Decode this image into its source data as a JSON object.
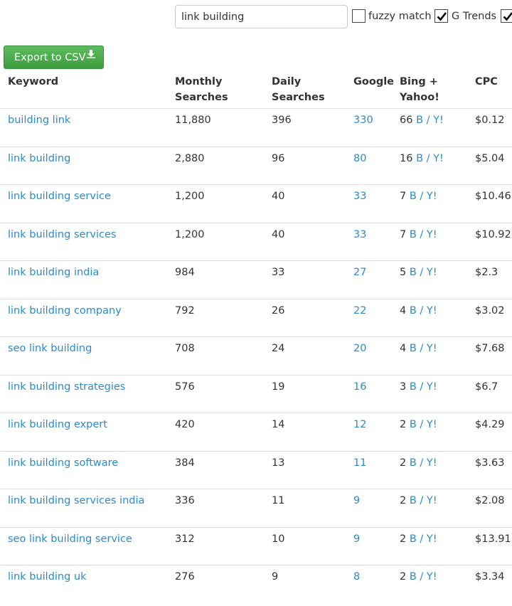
{
  "search": {
    "value": "link building"
  },
  "options": {
    "fuzzy_label": "fuzzy match",
    "fuzzy_checked": false,
    "gtrends_label": "G Trends",
    "gtrends_checked": true,
    "third_checked": true
  },
  "export_button": {
    "label": "Export to CSV",
    "icon": "download-icon"
  },
  "table": {
    "headers": {
      "keyword": "Keyword",
      "monthly_1": "Monthly",
      "monthly_2": "Searches",
      "daily_1": "Daily",
      "daily_2": "Searches",
      "google": "Google",
      "bing_1": "Bing +",
      "bing_2": "Yahoo!",
      "cpc": "CPC"
    },
    "rows": [
      {
        "keyword": "building link",
        "monthly": "11,880",
        "daily": "396",
        "google": "330",
        "bing": "66",
        "cpc": "$0.12"
      },
      {
        "keyword": "link building",
        "monthly": "2,880",
        "daily": "96",
        "google": "80",
        "bing": "16",
        "cpc": "$5.04"
      },
      {
        "keyword": "link building service",
        "monthly": "1,200",
        "daily": "40",
        "google": "33",
        "bing": "7",
        "cpc": "$10.46"
      },
      {
        "keyword": "link building services",
        "monthly": "1,200",
        "daily": "40",
        "google": "33",
        "bing": "7",
        "cpc": "$10.92"
      },
      {
        "keyword": "link building india",
        "monthly": "984",
        "daily": "33",
        "google": "27",
        "bing": "5",
        "cpc": "$2.3"
      },
      {
        "keyword": "link building company",
        "monthly": "792",
        "daily": "26",
        "google": "22",
        "bing": "4",
        "cpc": "$3.02"
      },
      {
        "keyword": "seo link building",
        "monthly": "708",
        "daily": "24",
        "google": "20",
        "bing": "4",
        "cpc": "$7.68"
      },
      {
        "keyword": "link building strategies",
        "monthly": "576",
        "daily": "19",
        "google": "16",
        "bing": "3",
        "cpc": "$6.7"
      },
      {
        "keyword": "link building expert",
        "monthly": "420",
        "daily": "14",
        "google": "12",
        "bing": "2",
        "cpc": "$4.29"
      },
      {
        "keyword": "link building software",
        "monthly": "384",
        "daily": "13",
        "google": "11",
        "bing": "2",
        "cpc": "$3.63"
      },
      {
        "keyword": "link building services india",
        "monthly": "336",
        "daily": "11",
        "google": "9",
        "bing": "2",
        "cpc": "$2.08"
      },
      {
        "keyword": "seo link building service",
        "monthly": "312",
        "daily": "10",
        "google": "9",
        "bing": "2",
        "cpc": "$13.91"
      },
      {
        "keyword": "link building uk",
        "monthly": "276",
        "daily": "9",
        "google": "8",
        "bing": "2",
        "cpc": "$3.34"
      }
    ],
    "bing_link_b": "B",
    "bing_sep": " / ",
    "bing_link_y": "Y!"
  },
  "colors": {
    "link": "#2a8ad0",
    "button": "#4cae4c",
    "text": "#333333"
  }
}
